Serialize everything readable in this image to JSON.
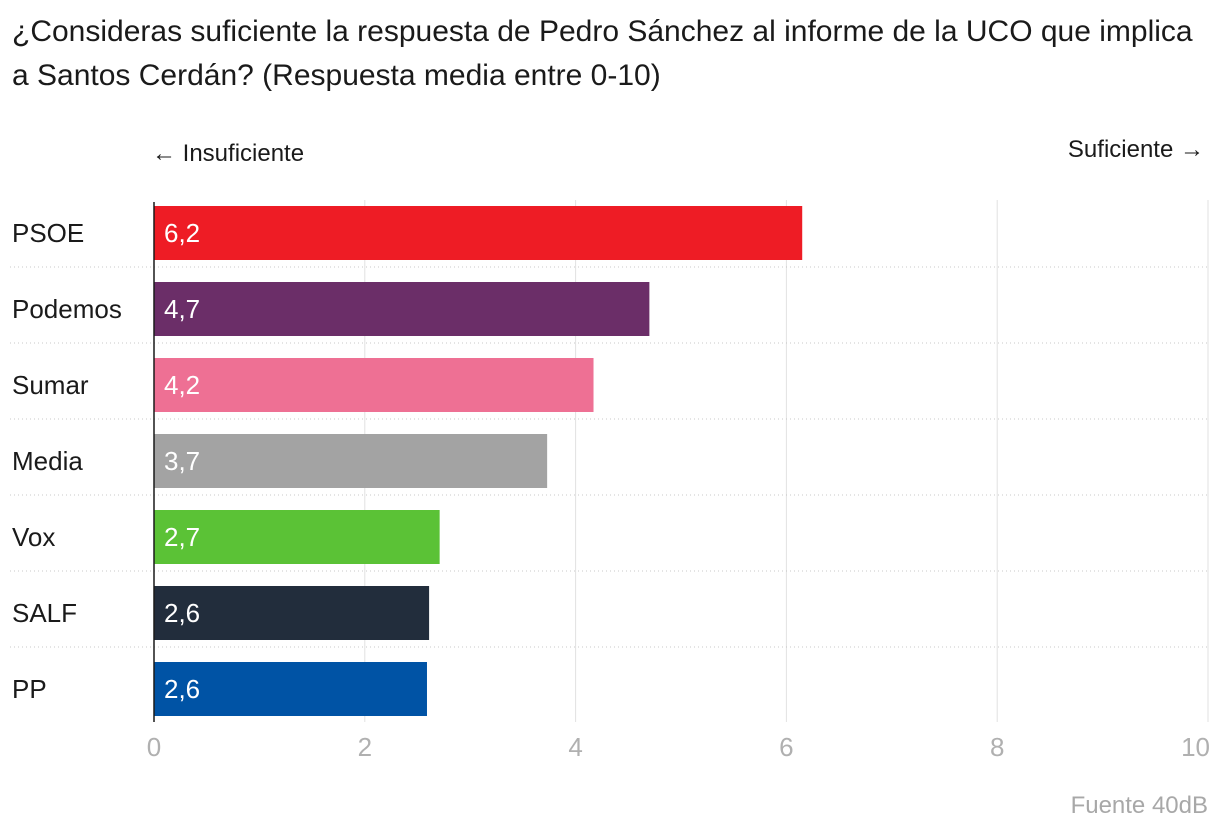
{
  "title": "¿Consideras suficiente la respuesta de Pedro Sánchez al informe de la UCO que implica a Santos Cerdán? (Respuesta media entre 0-10)",
  "hints": {
    "left": "← Insuficiente",
    "right": "Suficiente →"
  },
  "source": "Fuente 40dB",
  "chart_data": {
    "type": "bar",
    "orientation": "horizontal",
    "categories": [
      "PSOE",
      "Podemos",
      "Sumar",
      "Media",
      "Vox",
      "SALF",
      "PP"
    ],
    "values": [
      6.15,
      4.7,
      4.17,
      3.73,
      2.71,
      2.61,
      2.59
    ],
    "value_labels": [
      "6,2",
      "4,7",
      "4,2",
      "3,7",
      "2,7",
      "2,6",
      "2,6"
    ],
    "colors": [
      "#ee1c25",
      "#6b2e68",
      "#ee7094",
      "#a3a3a3",
      "#5bc236",
      "#222d3c",
      "#0053a5"
    ],
    "xlim": [
      0,
      10
    ],
    "xticks": [
      0,
      2,
      4,
      6,
      8,
      10
    ],
    "xtick_labels": [
      "0",
      "2",
      "4",
      "6",
      "8",
      "10"
    ],
    "grid": true,
    "xlabel": "",
    "ylabel": ""
  }
}
